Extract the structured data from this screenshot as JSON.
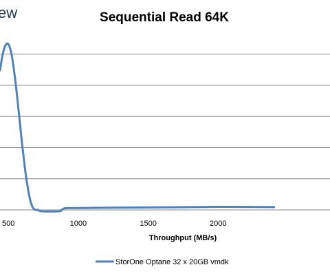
{
  "watermark": "ew",
  "chart_data": {
    "type": "line",
    "title": "Sequential Read 64K",
    "xlabel": "Throughput (MB/s)",
    "ylabel": "",
    "xlim": [
      440,
      2800
    ],
    "ylim": [
      0,
      5.5
    ],
    "x_ticks": [
      500,
      1000,
      1500,
      2000
    ],
    "grid": true,
    "legend": "bottom-center",
    "color": "#4f81bd",
    "series": [
      {
        "name": "StorOne Optane 32 x 20GB vmdk",
        "x": [
          440,
          450,
          460,
          470,
          480,
          490,
          500,
          510,
          520,
          530,
          540,
          550,
          560,
          570,
          580,
          600,
          620,
          640,
          660,
          680,
          700,
          715,
          730,
          800,
          870,
          880,
          900,
          930,
          1000,
          1200,
          1500,
          1800,
          2000,
          2400
        ],
        "y": [
          4.48,
          4.76,
          5.0,
          5.18,
          5.29,
          5.34,
          5.32,
          5.22,
          5.05,
          4.8,
          4.49,
          4.13,
          3.74,
          3.32,
          2.89,
          2.04,
          1.28,
          0.68,
          0.25,
          0.04,
          0.0,
          0.0,
          -0.04,
          -0.05,
          -0.04,
          0.0,
          0.05,
          0.06,
          0.06,
          0.07,
          0.08,
          0.09,
          0.1,
          0.09
        ]
      }
    ]
  }
}
